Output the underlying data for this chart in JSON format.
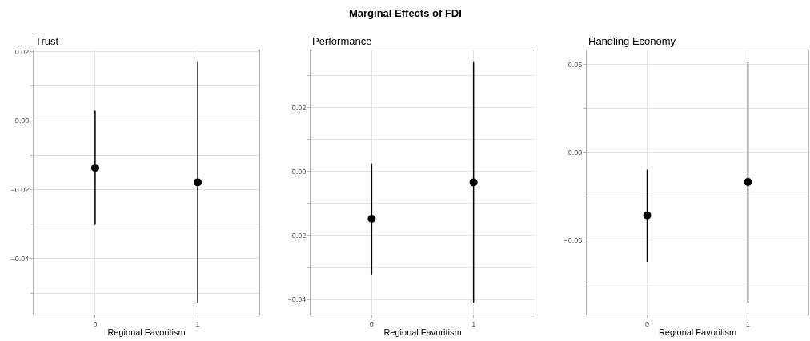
{
  "chart_data": [
    {
      "type": "scatter",
      "title": "Trust",
      "xlabel": "Regional Favoritism",
      "annotations": [
        "Marginal Effects of FDI"
      ],
      "categories": [
        "0",
        "1"
      ],
      "series": [
        {
          "color": "#000000",
          "values": [
            -0.0137,
            -0.0179
          ],
          "errors": [
            [
              -0.0302,
              0.0029
            ],
            [
              -0.0528,
              0.017
            ]
          ]
        }
      ],
      "ylim": [
        -0.0563,
        0.0205
      ],
      "yticks": [
        {
          "value": -0.05,
          "label": null
        },
        -0.04,
        {
          "value": -0.03,
          "label": null
        },
        -0.02,
        {
          "value": -0.01,
          "label": null
        },
        {
          "value": 0,
          "label": "0.00"
        },
        {
          "value": 0.01,
          "label": null
        },
        0.02
      ],
      "grid": true,
      "marker": "circle"
    },
    {
      "type": "scatter",
      "title": "Performance",
      "xlabel": "Regional Favoritism",
      "categories": [
        "0",
        "1"
      ],
      "series": [
        {
          "color": "#000000",
          "values": [
            -0.0148,
            -0.0034
          ],
          "errors": [
            [
              -0.0322,
              0.0025
            ],
            [
              -0.041,
              0.0342
            ]
          ]
        }
      ],
      "ylim": [
        -0.0448,
        0.038
      ],
      "yticks": [
        -0.04,
        {
          "value": -0.03,
          "label": null
        },
        -0.02,
        {
          "value": -0.01,
          "label": null
        },
        {
          "value": 0,
          "label": "0.00"
        },
        {
          "value": 0.01,
          "label": null
        },
        0.02,
        {
          "value": 0.03,
          "label": null
        }
      ],
      "grid": true,
      "marker": "circle"
    },
    {
      "type": "scatter",
      "title": "Handling Economy",
      "xlabel": "Regional Favoritism",
      "categories": [
        "0",
        "1"
      ],
      "series": [
        {
          "color": "#000000",
          "values": [
            -0.036,
            -0.017
          ],
          "errors": [
            [
              -0.0625,
              -0.0099
            ],
            [
              -0.0857,
              0.0514
            ]
          ]
        }
      ],
      "ylim": [
        -0.0926,
        0.0583
      ],
      "yticks": [
        {
          "value": -0.075,
          "label": null
        },
        -0.05,
        {
          "value": -0.025,
          "label": null
        },
        {
          "value": 0,
          "label": "0.00"
        },
        {
          "value": 0.025,
          "label": null
        },
        0.05
      ],
      "grid": true,
      "marker": "circle"
    }
  ]
}
